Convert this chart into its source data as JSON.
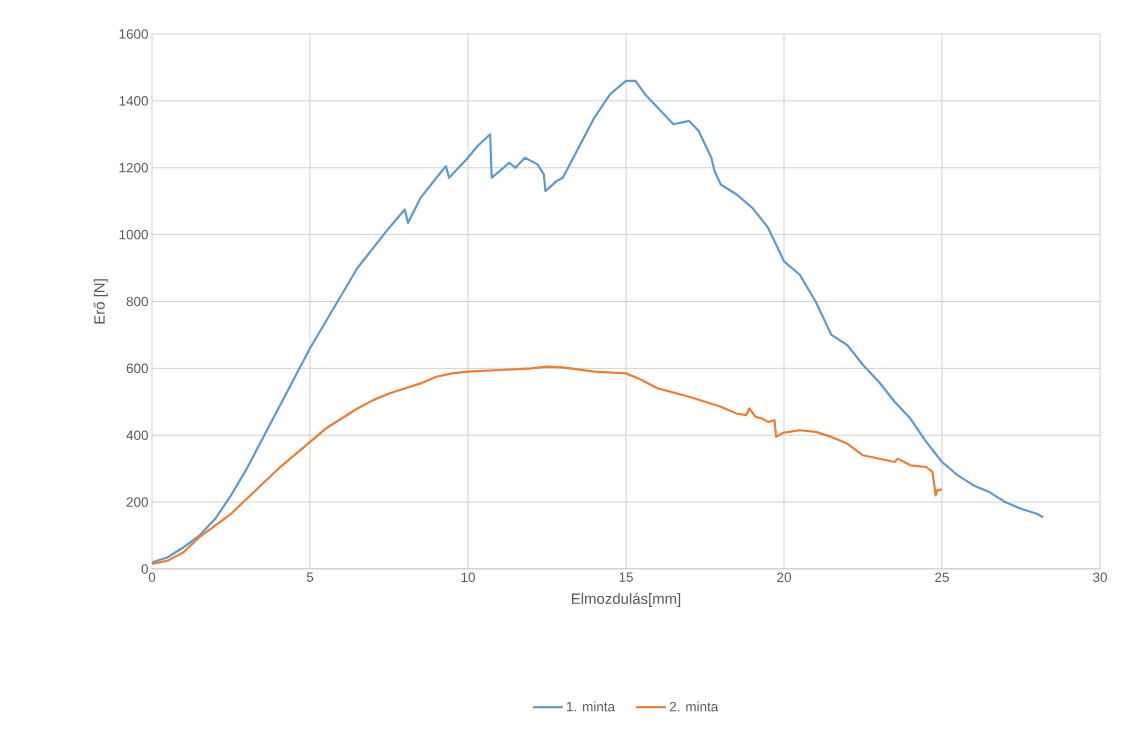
{
  "chart_data": {
    "type": "line",
    "xlabel": "Elmozdulás[mm]",
    "ylabel": "Erő [N]",
    "xlim": [
      0,
      30
    ],
    "xticks": [
      0,
      5,
      10,
      15,
      20,
      25,
      30
    ],
    "ylim": [
      0,
      1600
    ],
    "yticks": [
      0,
      200,
      400,
      600,
      800,
      1000,
      1200,
      1400,
      1600
    ],
    "grid": true,
    "legend": "bottom",
    "marker": "none",
    "line_style": "solid",
    "series": [
      {
        "name": "1. minta",
        "color": "#5b9bd5",
        "x": [
          0,
          0.5,
          1,
          1.5,
          2,
          2.5,
          3,
          3.5,
          4,
          4.5,
          5,
          5.5,
          6,
          6.5,
          7,
          7.5,
          8,
          8.1,
          8.5,
          9,
          9.3,
          9.4,
          9.7,
          10,
          10.3,
          10.7,
          10.75,
          11,
          11.3,
          11.5,
          11.8,
          12.2,
          12.4,
          12.45,
          12.8,
          13,
          13.5,
          14,
          14.5,
          15,
          15.3,
          15.6,
          16.2,
          16.5,
          17,
          17.3,
          17.7,
          17.8,
          18,
          18.5,
          19,
          19.5,
          20,
          20.5,
          21,
          21.5,
          22,
          22.5,
          23,
          23.5,
          24,
          24.5,
          25,
          25.5,
          26,
          26.5,
          27,
          27.5,
          28,
          28.2
        ],
        "values": [
          20,
          35,
          65,
          100,
          150,
          220,
          300,
          390,
          480,
          570,
          660,
          740,
          820,
          900,
          960,
          1020,
          1075,
          1035,
          1110,
          1170,
          1205,
          1170,
          1200,
          1230,
          1265,
          1300,
          1170,
          1190,
          1215,
          1200,
          1230,
          1210,
          1180,
          1130,
          1160,
          1170,
          1260,
          1350,
          1420,
          1460,
          1460,
          1420,
          1360,
          1330,
          1340,
          1310,
          1230,
          1190,
          1150,
          1120,
          1080,
          1020,
          920,
          880,
          800,
          700,
          670,
          610,
          560,
          500,
          450,
          380,
          320,
          280,
          250,
          230,
          200,
          180,
          165,
          155
        ]
      },
      {
        "name": "2. minta",
        "color": "#ed7d31",
        "x": [
          0,
          0.5,
          1,
          1.5,
          2,
          2.5,
          3,
          3.5,
          4,
          4.5,
          5,
          5.5,
          6,
          6.5,
          7,
          7.5,
          8,
          8.5,
          9,
          9.5,
          10,
          11,
          12,
          12.5,
          13,
          14,
          15,
          15.5,
          16,
          17,
          17.5,
          18,
          18.5,
          18.8,
          18.9,
          19.1,
          19.3,
          19.5,
          19.7,
          19.75,
          20,
          20.5,
          21,
          21.5,
          22,
          22.5,
          23,
          23.5,
          23.6,
          24,
          24.5,
          24.7,
          24.8,
          24.85,
          25
        ],
        "values": [
          15,
          25,
          50,
          95,
          130,
          165,
          210,
          255,
          300,
          340,
          380,
          420,
          450,
          480,
          505,
          525,
          540,
          555,
          575,
          585,
          590,
          595,
          600,
          605,
          603,
          590,
          585,
          565,
          540,
          515,
          500,
          485,
          465,
          460,
          480,
          455,
          450,
          440,
          445,
          395,
          408,
          415,
          410,
          395,
          375,
          340,
          330,
          320,
          330,
          310,
          305,
          290,
          220,
          235,
          238
        ]
      }
    ]
  }
}
